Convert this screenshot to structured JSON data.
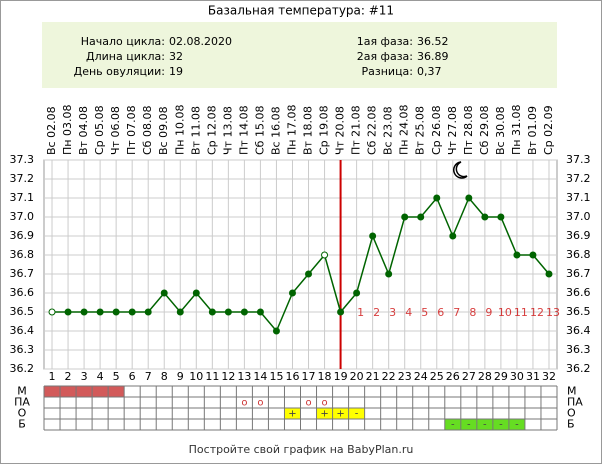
{
  "chart_data": {
    "type": "line",
    "title": "Базальная температура: #11",
    "info_left": [
      [
        "Начало цикла:",
        "02.08.2020"
      ],
      [
        "Длина цикла:",
        "32"
      ],
      [
        "День овуляции:",
        "19"
      ]
    ],
    "info_right": [
      [
        "1ая фаза:",
        "36.52"
      ],
      [
        "2ая фаза:",
        "36.89"
      ],
      [
        "Разница:",
        "0,37"
      ]
    ],
    "x": [
      1,
      2,
      3,
      4,
      5,
      6,
      7,
      8,
      9,
      10,
      11,
      12,
      13,
      14,
      15,
      16,
      17,
      18,
      19,
      20,
      21,
      22,
      23,
      24,
      25,
      26,
      27,
      28,
      29,
      30,
      31,
      32
    ],
    "dates": [
      "Вс 02.08",
      "Пн 03.08",
      "Вт 04.08",
      "Ср 05.08",
      "Чт 06.08",
      "Пт 07.08",
      "Сб 08.08",
      "Вс 09.08",
      "Пн 10.08",
      "Вт 11.08",
      "Ср 12.08",
      "Чт 13.08",
      "Пт 14.08",
      "Сб 15.08",
      "Вс 16.08",
      "Пн 17.08",
      "Вт 18.08",
      "Ср 19.08",
      "Чт 20.08",
      "Пт 21.08",
      "Сб 22.08",
      "Вс 23.08",
      "Пн 24.08",
      "Вт 25.08",
      "Ср 26.08",
      "Чт 27.08",
      "Пт 28.08",
      "Сб 29.08",
      "Вс 30.08",
      "Пн 31.08",
      "Вт 01.09",
      "Ср 02.09"
    ],
    "values": [
      36.5,
      36.5,
      36.5,
      36.5,
      36.5,
      36.5,
      36.5,
      36.6,
      36.5,
      36.6,
      36.5,
      36.5,
      36.5,
      36.5,
      36.4,
      36.6,
      36.7,
      36.8,
      36.5,
      36.6,
      36.9,
      36.7,
      37.0,
      37.0,
      37.1,
      36.9,
      37.1,
      37.0,
      37.0,
      36.8,
      36.8,
      36.7
    ],
    "hollow_days": [
      1,
      18
    ],
    "color": "#006400",
    "ovulation_day": 19,
    "ovulation_color": "#cc0000",
    "luteal_labels": [
      1,
      2,
      3,
      4,
      5,
      6,
      7,
      8,
      9,
      10,
      11,
      12,
      13
    ],
    "xlim": [
      0.5,
      32.5
    ],
    "ylim": [
      36.2,
      37.3
    ],
    "yticks": [
      36.2,
      36.3,
      36.4,
      36.5,
      36.6,
      36.7,
      36.8,
      36.9,
      {
        "value": 37.0,
        "label": "37.0"
      },
      37.1,
      37.2,
      37.3
    ],
    "grid": true,
    "rows": [
      {
        "label": "М",
        "color": "#d25a5a",
        "entries": [
          {
            "day": 1
          },
          {
            "day": 2
          },
          {
            "day": 3
          },
          {
            "day": 4
          },
          {
            "day": 5
          }
        ]
      },
      {
        "label": "ПА",
        "entries": [
          {
            "day": 13,
            "text": "o"
          },
          {
            "day": 14,
            "text": "o"
          },
          {
            "day": 17,
            "text": "o"
          },
          {
            "day": 18,
            "text": "o"
          }
        ]
      },
      {
        "label": "О",
        "color": "#ffff00",
        "entries": [
          {
            "day": 16,
            "text": "+"
          },
          {
            "day": 18,
            "text": "+"
          },
          {
            "day": 19,
            "text": "+"
          },
          {
            "day": 20,
            "text": "-"
          }
        ]
      },
      {
        "label": "Б",
        "color": "#66dd22",
        "entries": [
          {
            "day": 26,
            "text": "-"
          },
          {
            "day": 27,
            "text": "-"
          },
          {
            "day": 28,
            "text": "-"
          },
          {
            "day": 29,
            "text": "-"
          },
          {
            "day": 30,
            "text": "-"
          }
        ]
      }
    ],
    "footer": "Постройте свой график на BabyPlan.ru"
  }
}
